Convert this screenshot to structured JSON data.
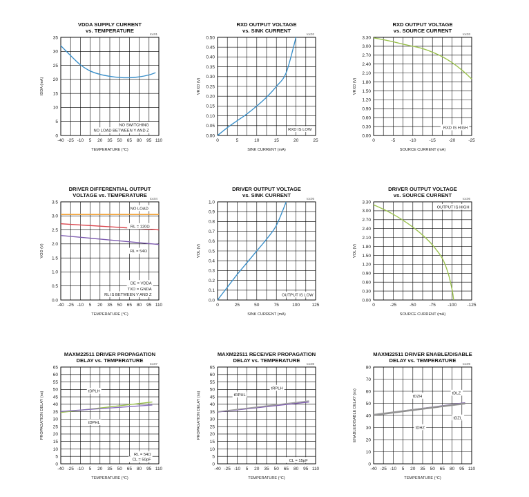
{
  "chart_data": [
    {
      "id": "c1",
      "type": "line",
      "toc": "toc01",
      "title": [
        "VDDA SUPPLY CURRENT",
        "vs. TEMPERATURE"
      ],
      "xlabel": "TEMPERATURE (°C)",
      "ylabel": "IDDA (mA)",
      "xlim": [
        -40,
        110
      ],
      "ylim": [
        0,
        35
      ],
      "xticks": [
        -40,
        -25,
        -10,
        5,
        20,
        35,
        50,
        65,
        80,
        95,
        110
      ],
      "yticks": [
        0,
        5,
        10,
        15,
        20,
        25,
        30,
        35
      ],
      "xtick_labels": [
        "-40",
        "-25",
        "-10",
        "5",
        "20",
        "35",
        "50",
        "65",
        "80",
        "95",
        "110"
      ],
      "ytick_labels": [
        "0",
        "5",
        "10",
        "15",
        "20",
        "25",
        "30",
        "35"
      ],
      "series": [
        {
          "name": "IDDA",
          "color": "#3a8fc9",
          "x": [
            -40,
            -25,
            -10,
            5,
            20,
            35,
            50,
            65,
            80,
            95,
            105
          ],
          "y": [
            32,
            28.5,
            25.2,
            23,
            21.8,
            21.1,
            20.7,
            20.6,
            20.9,
            21.6,
            22.4
          ]
        }
      ],
      "annotations": [
        {
          "text": "NO SWITCHING",
          "x": 95,
          "y": 3.3,
          "anchor": "end"
        },
        {
          "text": "NO LOAD BETWEEN Y AND Z",
          "x": 95,
          "y": 1.3,
          "anchor": "end"
        }
      ]
    },
    {
      "id": "c2",
      "type": "line",
      "toc": "toc02",
      "title": [
        "RXD OUTPUT VOLTAGE",
        "vs. SINK CURRENT"
      ],
      "xlabel": "SINK CURRENT (mA)",
      "ylabel": "VRXD (V)",
      "xlim": [
        0,
        25
      ],
      "ylim": [
        0,
        0.5
      ],
      "xticks": [
        0,
        2.5,
        5,
        7.5,
        10,
        12.5,
        15,
        17.5,
        20,
        22.5,
        25
      ],
      "yticks": [
        0,
        0.05,
        0.1,
        0.15,
        0.2,
        0.25,
        0.3,
        0.35,
        0.4,
        0.45,
        0.5
      ],
      "xtick_labels": [
        "0",
        "",
        "5",
        "",
        "10",
        "",
        "15",
        "",
        "20",
        "",
        "25"
      ],
      "ytick_labels": [
        "0.00",
        "0.05",
        "0.10",
        "0.15",
        "0.20",
        "0.25",
        "0.30",
        "0.35",
        "0.40",
        "0.45",
        "0.50"
      ],
      "series": [
        {
          "name": "VRXD",
          "color": "#3a8fc9",
          "x": [
            0,
            2.5,
            5,
            7.5,
            10,
            12.5,
            15,
            17.5,
            20
          ],
          "y": [
            0,
            0.04,
            0.075,
            0.11,
            0.15,
            0.195,
            0.25,
            0.32,
            0.5
          ]
        }
      ],
      "annotations": [
        {
          "text": "RXD IS LOW",
          "x": 24,
          "y": 0.025,
          "anchor": "end"
        }
      ]
    },
    {
      "id": "c3",
      "type": "line",
      "toc": "toc03",
      "title": [
        "RXD OUTPUT VOLTAGE",
        "vs. SOURCE CURRENT"
      ],
      "xlabel": "SOURCE CURRENT (mA)",
      "ylabel": "VRXD (V)",
      "xlim": [
        0,
        -25
      ],
      "ylim": [
        0,
        3.3
      ],
      "xticks": [
        0,
        -2.5,
        -5,
        -7.5,
        -10,
        -12.5,
        -15,
        -17.5,
        -20,
        -22.5,
        -25
      ],
      "yticks": [
        0,
        0.3,
        0.6,
        0.9,
        1.2,
        1.5,
        1.8,
        2.1,
        2.4,
        2.7,
        3.0,
        3.3
      ],
      "xtick_labels": [
        "0",
        "",
        "-5",
        "",
        "-10",
        "",
        "-15",
        "",
        "-20",
        "",
        "-25"
      ],
      "ytick_labels": [
        "0.00",
        "0.30",
        "0.60",
        "0.90",
        "1.20",
        "1.50",
        "1.80",
        "2.10",
        "2.40",
        "2.70",
        "3.00",
        "3.30"
      ],
      "series": [
        {
          "name": "VRXD",
          "color": "#9cc34f",
          "x": [
            0,
            -2.5,
            -5,
            -7.5,
            -10,
            -12.5,
            -15,
            -17.5,
            -20,
            -22.5,
            -25
          ],
          "y": [
            3.28,
            3.22,
            3.15,
            3.07,
            3.0,
            2.92,
            2.8,
            2.65,
            2.45,
            2.2,
            1.9
          ]
        }
      ],
      "annotations": [
        {
          "text": "RXD IS HIGH",
          "x": -24,
          "y": 0.22,
          "anchor": "end"
        }
      ]
    },
    {
      "id": "c4",
      "type": "line",
      "toc": "toc04",
      "title": [
        "DRIVER DIFFERENTIAL OUTPUT",
        "VOLTAGE vs. TEMPERATURE"
      ],
      "xlabel": "TEMPERATURE (°C)",
      "ylabel": "VOD (V)",
      "xlim": [
        -40,
        110
      ],
      "ylim": [
        0,
        3.5
      ],
      "xticks": [
        -40,
        -25,
        -10,
        5,
        20,
        35,
        50,
        65,
        80,
        95,
        110
      ],
      "yticks": [
        0,
        0.5,
        1,
        1.5,
        2,
        2.5,
        3,
        3.5
      ],
      "xtick_labels": [
        "-40",
        "-25",
        "-10",
        "5",
        "20",
        "35",
        "50",
        "65",
        "80",
        "95",
        "110"
      ],
      "ytick_labels": [
        "0.0",
        "0.5",
        "1.0",
        "1.5",
        "2.0",
        "2.5",
        "3.0",
        "3.5"
      ],
      "series": [
        {
          "name": "NO LOAD",
          "color": "#f2a33a",
          "x": [
            -40,
            110
          ],
          "y": [
            3.05,
            3.05
          ]
        },
        {
          "name": "RL = 120Ω",
          "color": "#d9434b",
          "x": [
            -40,
            110
          ],
          "y": [
            2.72,
            2.5
          ]
        },
        {
          "name": "RL = 54Ω",
          "color": "#7e5cb0",
          "x": [
            -40,
            110
          ],
          "y": [
            2.3,
            1.98
          ]
        }
      ],
      "annotations": [
        {
          "text": "NO LOAD",
          "x": 94,
          "y": 3.22,
          "anchor": "end"
        },
        {
          "text": "RL = 120Ω",
          "x": 96,
          "y": 2.58,
          "anchor": "end"
        },
        {
          "text": "RL = 54Ω",
          "x": 92,
          "y": 1.7,
          "anchor": "end"
        },
        {
          "text": "DE = VDDA",
          "x": 99,
          "y": 0.55,
          "anchor": "end"
        },
        {
          "text": "TXD = GNDA",
          "x": 99,
          "y": 0.35,
          "anchor": "end"
        },
        {
          "text": "RL IS BETWEEN Y AND Z",
          "x": 99,
          "y": 0.15,
          "anchor": "end"
        }
      ]
    },
    {
      "id": "c5",
      "type": "line",
      "toc": "toc05",
      "title": [
        "DRIVER OUTPUT VOLTAGE",
        "vs. SINK CURRENT"
      ],
      "xlabel": "SINK CURRENT (mA)",
      "ylabel": "VOL (V)",
      "xlim": [
        0,
        125
      ],
      "ylim": [
        0,
        1.0
      ],
      "xticks": [
        0,
        12.5,
        25,
        37.5,
        50,
        62.5,
        75,
        87.5,
        100,
        112.5,
        125
      ],
      "yticks": [
        0,
        0.1,
        0.2,
        0.3,
        0.4,
        0.5,
        0.6,
        0.7,
        0.8,
        0.9,
        1.0
      ],
      "xtick_labels": [
        "0",
        "",
        "25",
        "",
        "50",
        "",
        "75",
        "",
        "100",
        "",
        "125"
      ],
      "ytick_labels": [
        "0.0",
        "0.1",
        "0.2",
        "0.3",
        "0.4",
        "0.5",
        "0.6",
        "0.7",
        "0.8",
        "0.9",
        "1.0"
      ],
      "series": [
        {
          "name": "VOL",
          "color": "#3a8fc9",
          "x": [
            0,
            12.5,
            25,
            37.5,
            50,
            62.5,
            75,
            87.5
          ],
          "y": [
            0,
            0.13,
            0.26,
            0.38,
            0.5,
            0.62,
            0.76,
            1.0
          ]
        }
      ],
      "annotations": [
        {
          "text": "OUTPUT IS LOW",
          "x": 122,
          "y": 0.04,
          "anchor": "end"
        }
      ]
    },
    {
      "id": "c6",
      "type": "line",
      "toc": "toc06",
      "title": [
        "DRIVER OUTPUT VOLTAGE",
        "vs. SOURCE CURRENT"
      ],
      "xlabel": "SOURCE CURRENT (mA)",
      "ylabel": "VOL (V)",
      "xlim": [
        0,
        -125
      ],
      "ylim": [
        0,
        3.3
      ],
      "xticks": [
        0,
        -12.5,
        -25,
        -37.5,
        -50,
        -62.5,
        -75,
        -87.5,
        -100,
        -112.5,
        -125
      ],
      "yticks": [
        0,
        0.3,
        0.6,
        0.9,
        1.2,
        1.5,
        1.8,
        2.1,
        2.4,
        2.7,
        3.0,
        3.3
      ],
      "xtick_labels": [
        "0",
        "",
        "-25",
        "",
        "-50",
        "",
        "-75",
        "",
        "-100",
        "",
        "-125"
      ],
      "ytick_labels": [
        "0.00",
        "0.30",
        "0.60",
        "0.90",
        "1.20",
        "1.50",
        "1.80",
        "2.10",
        "2.40",
        "2.70",
        "3.00",
        "3.30"
      ],
      "series": [
        {
          "name": "VOH",
          "color": "#9cc34f",
          "x": [
            0,
            -12.5,
            -25,
            -37.5,
            -50,
            -62.5,
            -75,
            -87.5,
            -95,
            -100,
            -102
          ],
          "y": [
            3.2,
            3.05,
            2.88,
            2.68,
            2.45,
            2.18,
            1.85,
            1.4,
            0.9,
            0.35,
            0
          ]
        }
      ],
      "annotations": [
        {
          "text": "OUTPUT IS HIGH",
          "x": -122,
          "y": 3.08,
          "anchor": "end"
        }
      ]
    },
    {
      "id": "c7",
      "type": "line",
      "toc": "toc07",
      "title": [
        "MAXM22511 DRIVER PROPAGATION",
        "DELAY vs. TEMPERATURE"
      ],
      "xlabel": "TEMPERATURE (°C)",
      "ylabel": "PROPAGATION DELAY (ns)",
      "xlim": [
        -40,
        110
      ],
      "ylim": [
        0,
        65
      ],
      "xticks": [
        -40,
        -25,
        -10,
        5,
        20,
        35,
        50,
        65,
        80,
        95,
        110
      ],
      "yticks": [
        0,
        5,
        10,
        15,
        20,
        25,
        30,
        35,
        40,
        45,
        50,
        55,
        60,
        65
      ],
      "xtick_labels": [
        "-40",
        "-25",
        "-10",
        "5",
        "20",
        "35",
        "50",
        "65",
        "80",
        "95",
        "110"
      ],
      "ytick_labels": [
        "0",
        "5",
        "10",
        "15",
        "20",
        "25",
        "30",
        "35",
        "40",
        "45",
        "50",
        "55",
        "60",
        "65"
      ],
      "series": [
        {
          "name": "tDPLH",
          "color": "#9cc34f",
          "x": [
            -40,
            100
          ],
          "y": [
            34.5,
            41.5
          ]
        },
        {
          "name": "tDPHL",
          "color": "#8a70c0",
          "x": [
            -40,
            100
          ],
          "y": [
            35.2,
            39.5
          ]
        }
      ],
      "annotations": [
        {
          "text": "tDPLH",
          "x": 2,
          "y": 48,
          "anchor": "start"
        },
        {
          "text": "tDPHL",
          "x": 2,
          "y": 27,
          "anchor": "start"
        },
        {
          "text": "RL = 54Ω",
          "x": 98,
          "y": 5.5,
          "anchor": "end"
        },
        {
          "text": "CL = 50pF",
          "x": 98,
          "y": 2,
          "anchor": "end"
        }
      ]
    },
    {
      "id": "c8",
      "type": "line",
      "toc": "toc08",
      "title": [
        "MAXM22511 RECEIVER PROPAGATION",
        "DELAY vs. TEMPERATURE"
      ],
      "xlabel": "TEMPERATURE (°C)",
      "ylabel": "PROPAGATION DELAY (ns)",
      "xlim": [
        -40,
        110
      ],
      "ylim": [
        0,
        65
      ],
      "xticks": [
        -40,
        -25,
        -10,
        5,
        20,
        35,
        50,
        65,
        80,
        95,
        110
      ],
      "yticks": [
        0,
        5,
        10,
        15,
        20,
        25,
        30,
        35,
        40,
        45,
        50,
        55,
        60,
        65
      ],
      "xtick_labels": [
        "-40",
        "-25",
        "-10",
        "5",
        "20",
        "35",
        "50",
        "65",
        "80",
        "95",
        "110"
      ],
      "ytick_labels": [
        "0",
        "5",
        "10",
        "15",
        "20",
        "25",
        "30",
        "35",
        "40",
        "45",
        "50",
        "55",
        "60",
        "65"
      ],
      "series": [
        {
          "name": "tRPHL",
          "color": "#7e5cb0",
          "x": [
            -40,
            100
          ],
          "y": [
            34.8,
            41.5
          ]
        },
        {
          "name": "tRPLH",
          "color": "#a0a0a0",
          "x": [
            -40,
            100
          ],
          "y": [
            35.0,
            42.3
          ]
        }
      ],
      "annotations": [
        {
          "text": "tRPHL",
          "x": -15,
          "y": 45.5,
          "anchor": "start"
        },
        {
          "text": "tRPLH",
          "x": 42,
          "y": 50,
          "anchor": "start"
        },
        {
          "text": "CL = 15pF",
          "x": 98,
          "y": 1.5,
          "anchor": "end"
        }
      ]
    },
    {
      "id": "c9",
      "type": "line",
      "toc": "toc09",
      "title": [
        "MAXM22511 DRIVER ENABLE/DISABLE",
        "DELAY vs. TEMPERATURE"
      ],
      "xlabel": "TEMPERATURE (°C)",
      "ylabel": "ENABLE/DISABLE DELAY (ns)",
      "xlim": [
        -40,
        110
      ],
      "ylim": [
        0,
        80
      ],
      "xticks": [
        -40,
        -25,
        -10,
        5,
        20,
        35,
        50,
        65,
        80,
        95,
        110
      ],
      "yticks": [
        0,
        10,
        20,
        30,
        40,
        50,
        60,
        70,
        80
      ],
      "xtick_labels": [
        "-40",
        "-25",
        "-10",
        "5",
        "20",
        "35",
        "50",
        "65",
        "80",
        "95",
        "110"
      ],
      "ytick_labels": [
        "0",
        "10",
        "20",
        "30",
        "40",
        "50",
        "60",
        "70",
        "80"
      ],
      "series": [
        {
          "name": "tDZH",
          "color": "#7e5cb0",
          "x": [
            -40,
            100
          ],
          "y": [
            40.5,
            50.5
          ]
        },
        {
          "name": "tDLZ",
          "color": "#9a9a9a",
          "x": [
            -40,
            100
          ],
          "y": [
            40.8,
            50.2
          ]
        },
        {
          "name": "tDZL",
          "color": "#b0b0b0",
          "x": [
            -40,
            100
          ],
          "y": [
            40.2,
            49.5
          ]
        },
        {
          "name": "tDHZ",
          "color": "#8c8c8c",
          "x": [
            -40,
            100
          ],
          "y": [
            40.0,
            49.8
          ]
        }
      ],
      "annotations": [
        {
          "text": "tDZH",
          "x": 20,
          "y": 55,
          "anchor": "start"
        },
        {
          "text": "tDLZ",
          "x": 80,
          "y": 57.5,
          "anchor": "start"
        },
        {
          "text": "tDZL",
          "x": 82,
          "y": 37,
          "anchor": "start"
        },
        {
          "text": "tDHZ",
          "x": 24,
          "y": 29,
          "anchor": "start"
        }
      ]
    }
  ]
}
